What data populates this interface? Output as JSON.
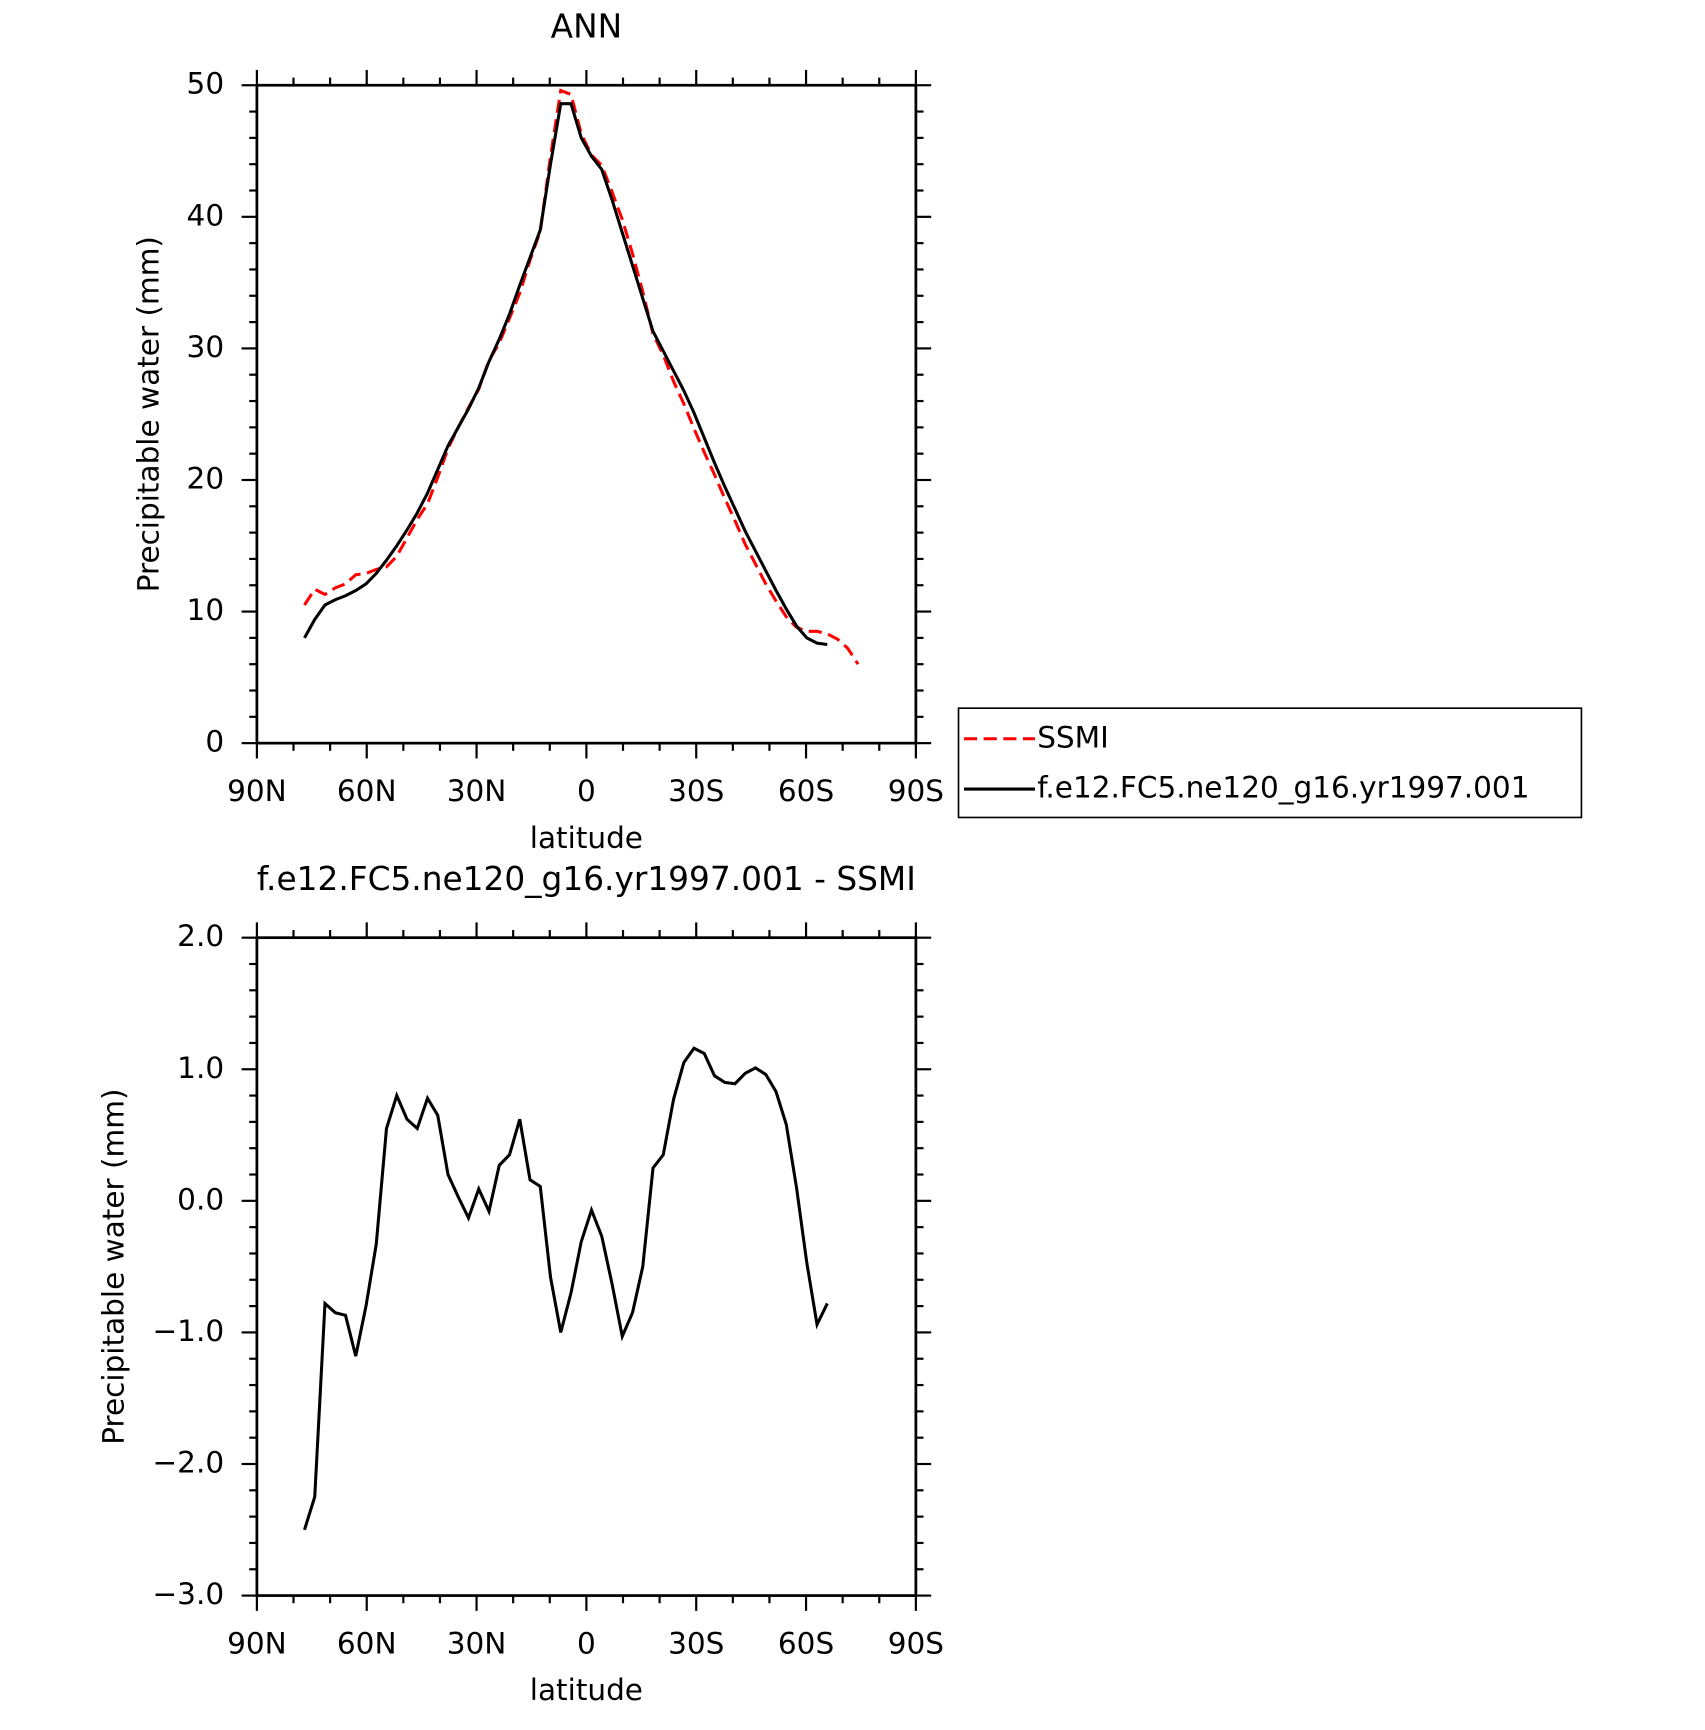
{
  "chart_data": [
    {
      "type": "line",
      "title": "ANN",
      "x_label": "latitude",
      "y_label": "Precipitable water (mm)",
      "x": [
        77,
        74.2,
        71.4,
        68.6,
        65.8,
        63,
        60.2,
        57.4,
        54.6,
        51.8,
        49,
        46.2,
        43.4,
        40.6,
        37.8,
        35,
        32.2,
        29.4,
        26.6,
        23.8,
        21,
        18.2,
        15.4,
        12.6,
        9.8,
        7,
        4.2,
        1.4,
        -1.4,
        -4.2,
        -7,
        -9.8,
        -12.6,
        -15.4,
        -18.2,
        -21,
        -23.8,
        -26.6,
        -29.4,
        -32.2,
        -35,
        -37.8,
        -40.6,
        -43.4,
        -46.2,
        -49,
        -51.8,
        -54.6,
        -57.4,
        -60.2,
        -63,
        -65.8,
        -68.6,
        -71.4,
        -74.2
      ],
      "series": [
        {
          "name": "SSMI",
          "color": "#ff0000",
          "dashed": true,
          "values": [
            10.5,
            11.7,
            11.3,
            11.8,
            12.1,
            12.8,
            12.9,
            13.2,
            13.4,
            14.2,
            15.6,
            17.0,
            18.2,
            20.2,
            22.4,
            24.0,
            25.5,
            26.9,
            29.1,
            30.4,
            32.3,
            34.2,
            36.7,
            38.9,
            44.6,
            49.6,
            49.3,
            46.3,
            44.7,
            43.9,
            41.9,
            39.8,
            37.2,
            34.3,
            31.1,
            29.5,
            27.5,
            25.8,
            23.9,
            22.1,
            20.4,
            18.6,
            16.9,
            15.1,
            13.6,
            12.1,
            10.8,
            9.6,
            8.8,
            8.5,
            8.5,
            8.3,
            7.9,
            7.2,
            6.0
          ]
        },
        {
          "name": "f.e12.FC5.ne120_g16.yr1997.001",
          "color": "#000000",
          "dashed": false,
          "values": [
            8.0,
            9.4,
            10.5,
            10.9,
            11.2,
            11.6,
            12.1,
            12.9,
            13.9,
            15.0,
            16.2,
            17.5,
            19.0,
            20.8,
            22.6,
            24.0,
            25.4,
            27.0,
            29.0,
            30.7,
            32.6,
            34.8,
            36.9,
            39.0,
            44.0,
            48.6,
            48.6,
            46.0,
            44.6,
            43.6,
            41.3,
            38.8,
            36.3,
            33.8,
            31.3,
            29.8,
            28.3,
            26.8,
            25.1,
            23.2,
            21.3,
            19.5,
            17.8,
            16.1,
            14.6,
            13.1,
            11.6,
            10.2,
            8.9,
            8.0,
            7.6,
            7.5,
            null,
            null,
            null
          ]
        }
      ],
      "xlim": [
        90,
        -90
      ],
      "xticks": [
        {
          "value": 90,
          "label": "90N"
        },
        {
          "value": 60,
          "label": "60N"
        },
        {
          "value": 30,
          "label": "30N"
        },
        0,
        {
          "value": -30,
          "label": "30S"
        },
        {
          "value": -60,
          "label": "60S"
        },
        {
          "value": -90,
          "label": "90S"
        }
      ],
      "ylim": [
        0,
        50
      ],
      "yticks": [
        0,
        10,
        20,
        30,
        40,
        50
      ],
      "legend": "right"
    },
    {
      "type": "line",
      "title": "f.e12.FC5.ne120_g16.yr1997.001 - SSMI",
      "x_label": "latitude",
      "y_label": "Precipitable water (mm)",
      "x": [
        77,
        74.2,
        71.4,
        68.6,
        65.8,
        63,
        60.2,
        57.4,
        54.6,
        51.8,
        49,
        46.2,
        43.4,
        40.6,
        37.8,
        35,
        32.2,
        29.4,
        26.6,
        23.8,
        21,
        18.2,
        15.4,
        12.6,
        9.8,
        7,
        4.2,
        1.4,
        -1.4,
        -4.2,
        -7,
        -9.8,
        -12.6,
        -15.4,
        -18.2,
        -21,
        -23.8,
        -26.6,
        -29.4,
        -32.2,
        -35,
        -37.8,
        -40.6,
        -43.4,
        -46.2,
        -49,
        -51.8,
        -54.6,
        -57.4,
        -60.2,
        -63,
        -65.8
      ],
      "series": [
        {
          "color": "#000000",
          "dashed": false,
          "values": [
            -2.5,
            -2.25,
            -0.78,
            -0.85,
            -0.87,
            -1.18,
            -0.8,
            -0.33,
            0.55,
            0.8,
            0.62,
            0.55,
            0.78,
            0.65,
            0.2,
            0.03,
            -0.13,
            0.09,
            -0.08,
            0.27,
            0.35,
            0.62,
            0.16,
            0.11,
            -0.58,
            -1.0,
            -0.7,
            -0.31,
            -0.07,
            -0.27,
            -0.63,
            -1.03,
            -0.85,
            -0.5,
            0.25,
            0.35,
            0.77,
            1.05,
            1.16,
            1.12,
            0.95,
            0.9,
            0.89,
            0.97,
            1.01,
            0.96,
            0.83,
            0.58,
            0.1,
            -0.47,
            -0.94,
            -0.78
          ]
        }
      ],
      "xlim": [
        90,
        -90
      ],
      "xticks": [
        {
          "value": 90,
          "label": "90N"
        },
        {
          "value": 60,
          "label": "60N"
        },
        {
          "value": 30,
          "label": "30N"
        },
        0,
        {
          "value": -30,
          "label": "30S"
        },
        {
          "value": -60,
          "label": "60S"
        },
        {
          "value": -90,
          "label": "90S"
        }
      ],
      "ylim": [
        -3,
        2
      ],
      "yticks": [
        {
          "value": -3,
          "label": "−3.0"
        },
        {
          "value": -2,
          "label": "−2.0"
        },
        {
          "value": -1,
          "label": "−1.0"
        },
        {
          "value": 0,
          "label": "0.0"
        },
        {
          "value": 1,
          "label": "1.0"
        },
        {
          "value": 2,
          "label": "2.0"
        }
      ]
    }
  ]
}
